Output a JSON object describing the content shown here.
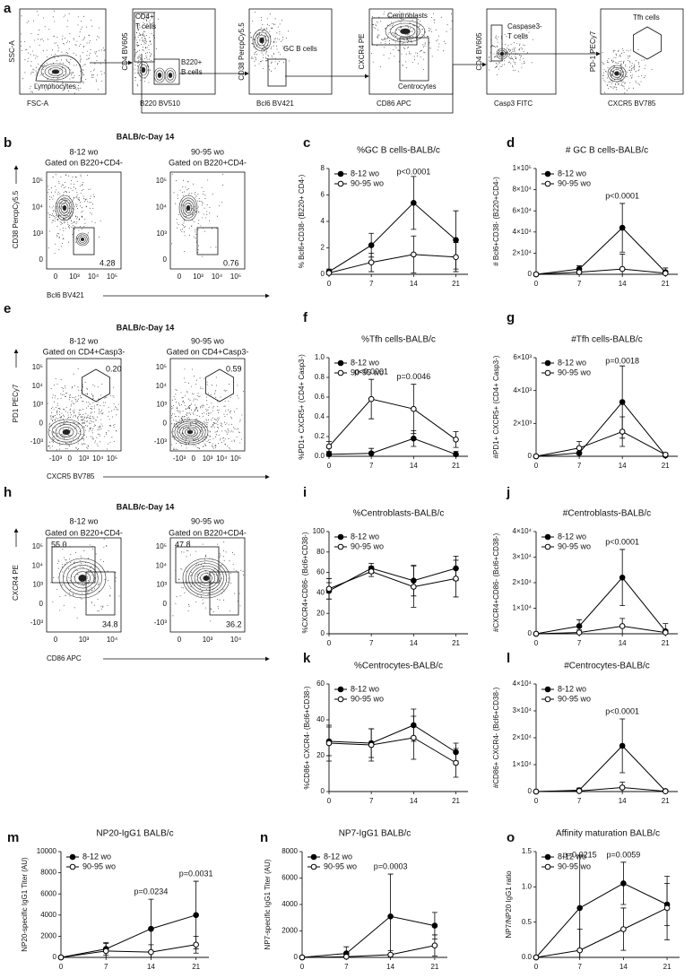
{
  "flow_row": {
    "letter": "a",
    "plots": [
      {
        "y_label": "SSC-A",
        "x_label": "FSC-A",
        "gates": [
          "Lymphocytes"
        ]
      },
      {
        "y_label": "CD4 BV605",
        "x_label": "B220 BV510",
        "gates": [
          "CD4+",
          "T cells",
          "B220+",
          "B cells"
        ]
      },
      {
        "y_label": "CD38 PercpCy5.5",
        "x_label": "Bcl6 BV421",
        "gates": [
          "GC B cells"
        ]
      },
      {
        "y_label": "CXCR4 PE",
        "x_label": "CD86 APC",
        "gates": [
          "Centroblasts",
          "Centrocytes"
        ]
      },
      {
        "y_label": "CD4 BV605",
        "x_label": "Casp3 FITC",
        "gates": [
          "Caspase3-",
          "T cells"
        ]
      },
      {
        "y_label": "PD-1 PECy7",
        "x_label": "CXCR5 BV785",
        "gates": [
          "Tfh cells"
        ]
      }
    ]
  },
  "flow_panels": [
    {
      "letter": "b",
      "title": "BALB/c-Day 14",
      "y_label": "CD38 PercpCy5.5",
      "x_label": "Bcl6 BV421",
      "y_ticks": [
        "10⁵",
        "10⁴",
        "10³",
        "0"
      ],
      "x_ticks": [
        "0",
        "10³",
        "10⁴",
        "10⁵"
      ],
      "plots": [
        {
          "age": "8-12 wo",
          "gating": "Gated on B220+CD4-",
          "gates": [
            "4.28"
          ]
        },
        {
          "age": "90-95 wo",
          "gating": "Gated on B220+CD4-",
          "gates": [
            "0.76"
          ]
        }
      ]
    },
    {
      "letter": "e",
      "title": "BALB/c-Day 14",
      "y_label": "PD1 PECy7",
      "x_label": "CXCR5 BV785",
      "y_ticks": [
        "10⁵",
        "10⁴",
        "10³",
        "0",
        "-10³"
      ],
      "x_ticks": [
        "-10³",
        "0",
        "10³",
        "10⁴",
        "10⁵"
      ],
      "plots": [
        {
          "age": "8-12 wo",
          "gating": "Gated on CD4+Casp3-",
          "gates": [
            "0.20"
          ]
        },
        {
          "age": "90-95 wo",
          "gating": "Gated on CD4+Casp3-",
          "gates": [
            "0.59"
          ]
        }
      ]
    },
    {
      "letter": "h",
      "title": "BALB/c-Day 14",
      "y_label": "CXCR4 PE",
      "x_label": "CD86 APC",
      "y_ticks": [
        "10⁵",
        "10⁴",
        "10³",
        "0",
        "-10³"
      ],
      "x_ticks": [
        "0",
        "10³",
        "10⁴"
      ],
      "plots": [
        {
          "age": "8-12 wo",
          "gating": "Gated on B220+CD4-",
          "gates": [
            "55.0",
            "34.8"
          ]
        },
        {
          "age": "90-95 wo",
          "gating": "Gated on B220+CD4-",
          "gates": [
            "47.8",
            "36.2"
          ]
        }
      ]
    }
  ],
  "chart_data": [
    {
      "letter": "c",
      "type": "line",
      "title": "%GC B cells-BALB/c",
      "y_label": "% Bcl6+CD38- (B220+ CD4-)",
      "x": [
        0,
        7,
        14,
        21
      ],
      "xlim": [
        0,
        23
      ],
      "xticks": [
        0,
        7,
        14,
        21
      ],
      "ylim": [
        0,
        8
      ],
      "yticks": [
        0,
        2,
        4,
        6,
        8
      ],
      "series": [
        {
          "name": "8-12 wo",
          "color": "#000000",
          "filled": true,
          "values": [
            0.2,
            2.2,
            5.4,
            2.6
          ],
          "errors": [
            0.2,
            0.9,
            2.0,
            2.2
          ]
        },
        {
          "name": "90-95 wo",
          "color": "#000000",
          "filled": false,
          "values": [
            0.1,
            0.9,
            1.5,
            1.3
          ],
          "errors": [
            0.1,
            0.7,
            1.4,
            1.1
          ]
        }
      ],
      "annotations": [
        "p<0.0001"
      ]
    },
    {
      "letter": "d",
      "type": "line",
      "title": "# GC B cells-BALB/c",
      "y_label": "# Bcl6+CD38- (B220+CD4-)",
      "x": [
        0,
        7,
        14,
        21
      ],
      "xlim": [
        0,
        23
      ],
      "xticks": [
        0,
        7,
        14,
        21
      ],
      "ylim": [
        0,
        100000
      ],
      "yticks": [
        0,
        {
          "value": 20000,
          "label": "2×10⁴"
        },
        {
          "value": 40000,
          "label": "4×10⁴"
        },
        {
          "value": 60000,
          "label": "6×10⁴"
        },
        {
          "value": 80000,
          "label": "8×10⁴"
        },
        {
          "value": 100000,
          "label": "1×10⁵"
        }
      ],
      "series": [
        {
          "name": "8-12 wo",
          "color": "#000000",
          "filled": true,
          "values": [
            0,
            5000,
            44000,
            2000
          ],
          "errors": [
            0,
            3000,
            23000,
            4000
          ]
        },
        {
          "name": "90-95 wo",
          "color": "#000000",
          "filled": false,
          "values": [
            0,
            2000,
            5000,
            1000
          ],
          "errors": [
            0,
            1000,
            14000,
            2000
          ]
        }
      ],
      "annotations": [
        "p<0.0001"
      ]
    },
    {
      "letter": "f",
      "type": "line",
      "title": "%Tfh cells-BALB/c",
      "y_label": "%PD1+ CXCR5+ (CD4+ Casp3-)",
      "x": [
        0,
        7,
        14,
        21
      ],
      "xlim": [
        0,
        23
      ],
      "xticks": [
        0,
        7,
        14,
        21
      ],
      "ylim": [
        0,
        1
      ],
      "yticks": [
        {
          "value": 0,
          "label": "0.0"
        },
        0.2,
        0.4,
        0.6,
        0.8,
        {
          "value": 1,
          "label": "1.0"
        }
      ],
      "series": [
        {
          "name": "8-12 wo",
          "color": "#000000",
          "filled": true,
          "values": [
            0.02,
            0.03,
            0.18,
            0.02
          ],
          "errors": [
            0.02,
            0.05,
            0.08,
            0.03
          ]
        },
        {
          "name": "90-95 wo",
          "color": "#000000",
          "filled": false,
          "values": [
            0.1,
            0.58,
            0.48,
            0.17
          ],
          "errors": [
            0.05,
            0.2,
            0.25,
            0.08
          ]
        }
      ],
      "annotations": [
        "p<0.0001",
        "p=0.0046"
      ]
    },
    {
      "letter": "g",
      "type": "line",
      "title": "#Tfh cells-BALB/c",
      "y_label": "#PD1+ CXCR5+ (CD4+ Casp3-)",
      "x": [
        0,
        7,
        14,
        21
      ],
      "xlim": [
        0,
        23
      ],
      "xticks": [
        0,
        7,
        14,
        21
      ],
      "ylim": [
        0,
        6000
      ],
      "yticks": [
        0,
        {
          "value": 2000,
          "label": "2×10³"
        },
        {
          "value": 4000,
          "label": "4×10³"
        },
        {
          "value": 6000,
          "label": "6×10³"
        }
      ],
      "series": [
        {
          "name": "8-12 wo",
          "color": "#000000",
          "filled": true,
          "values": [
            0,
            200,
            3300,
            50
          ],
          "errors": [
            0,
            300,
            2200,
            100
          ]
        },
        {
          "name": "90-95 wo",
          "color": "#000000",
          "filled": false,
          "values": [
            0,
            500,
            1500,
            100
          ],
          "errors": [
            0,
            400,
            900,
            100
          ]
        }
      ],
      "annotations": [
        "p=0.0018"
      ]
    },
    {
      "letter": "i",
      "type": "line",
      "title": "%Centroblasts-BALB/c",
      "y_label": "%CXCR4+CD86- (Bcl6+CD38-)",
      "x": [
        0,
        7,
        14,
        21
      ],
      "xlim": [
        0,
        23
      ],
      "xticks": [
        0,
        7,
        14,
        21
      ],
      "ylim": [
        0,
        100
      ],
      "yticks": [
        0,
        20,
        40,
        60,
        80,
        100
      ],
      "series": [
        {
          "name": "8-12 wo",
          "color": "#000000",
          "filled": true,
          "values": [
            42,
            64,
            52,
            64
          ],
          "errors": [
            8,
            5,
            15,
            12
          ]
        },
        {
          "name": "90-95 wo",
          "color": "#000000",
          "filled": false,
          "values": [
            44,
            61,
            46,
            54
          ],
          "errors": [
            10,
            5,
            20,
            18
          ]
        }
      ],
      "annotations": []
    },
    {
      "letter": "j",
      "type": "line",
      "title": "#Centroblasts-BALB/c",
      "y_label": "#CXCR4+CD86- (Bcl6+CD38-)",
      "x": [
        0,
        7,
        14,
        21
      ],
      "xlim": [
        0,
        23
      ],
      "xticks": [
        0,
        7,
        14,
        21
      ],
      "ylim": [
        0,
        40000
      ],
      "yticks": [
        0,
        {
          "value": 10000,
          "label": "1×10⁴"
        },
        {
          "value": 20000,
          "label": "2×10⁴"
        },
        {
          "value": 30000,
          "label": "3×10⁴"
        },
        {
          "value": 40000,
          "label": "4×10⁴"
        }
      ],
      "series": [
        {
          "name": "8-12 wo",
          "color": "#000000",
          "filled": true,
          "values": [
            0,
            3000,
            22000,
            1000
          ],
          "errors": [
            0,
            2500,
            11000,
            3000
          ]
        },
        {
          "name": "90-95 wo",
          "color": "#000000",
          "filled": false,
          "values": [
            0,
            500,
            3000,
            500
          ],
          "errors": [
            0,
            1000,
            3000,
            1000
          ]
        }
      ],
      "annotations": [
        "p<0.0001"
      ]
    },
    {
      "letter": "k",
      "type": "line",
      "title": "%Centrocytes-BALB/c",
      "y_label": "%CD86+ CXCR4- (Bcl6+CD38-)",
      "x": [
        0,
        7,
        14,
        21
      ],
      "xlim": [
        0,
        23
      ],
      "xticks": [
        0,
        7,
        14,
        21
      ],
      "ylim": [
        0,
        60
      ],
      "yticks": [
        0,
        20,
        40,
        60
      ],
      "series": [
        {
          "name": "8-12 wo",
          "color": "#000000",
          "filled": true,
          "values": [
            28,
            27,
            37,
            22
          ],
          "errors": [
            8,
            8,
            9,
            5
          ]
        },
        {
          "name": "90-95 wo",
          "color": "#000000",
          "filled": false,
          "values": [
            27,
            26,
            30,
            16
          ],
          "errors": [
            10,
            9,
            12,
            8
          ]
        }
      ],
      "annotations": []
    },
    {
      "letter": "l",
      "type": "line",
      "title": "#Centrocytes-BALB/c",
      "y_label": "#CD86+ CXCR4- (Bcl6+CD38-)",
      "x": [
        0,
        7,
        14,
        21
      ],
      "xlim": [
        0,
        23
      ],
      "xticks": [
        0,
        7,
        14,
        21
      ],
      "ylim": [
        0,
        40000
      ],
      "yticks": [
        0,
        {
          "value": 10000,
          "label": "1×10⁴"
        },
        {
          "value": 20000,
          "label": "2×10⁴"
        },
        {
          "value": 30000,
          "label": "3×10⁴"
        },
        {
          "value": 40000,
          "label": "4×10⁴"
        }
      ],
      "series": [
        {
          "name": "8-12 wo",
          "color": "#000000",
          "filled": true,
          "values": [
            0,
            500,
            17000,
            200
          ],
          "errors": [
            0,
            800,
            10000,
            500
          ]
        },
        {
          "name": "90-95 wo",
          "color": "#000000",
          "filled": false,
          "values": [
            0,
            200,
            1500,
            100
          ],
          "errors": [
            0,
            300,
            2000,
            200
          ]
        }
      ],
      "annotations": [
        "p<0.0001"
      ]
    },
    {
      "letter": "m",
      "type": "line",
      "title": "NP20-IgG1 BALB/c",
      "y_label": "NP20-specific IgG1 Titer (AU)",
      "x": [
        0,
        7,
        14,
        21
      ],
      "xlim": [
        0,
        23
      ],
      "xticks": [
        0,
        7,
        14,
        21
      ],
      "ylim": [
        0,
        10000
      ],
      "yticks": [
        0,
        2000,
        4000,
        6000,
        8000,
        10000
      ],
      "series": [
        {
          "name": "8-12 wo",
          "color": "#000000",
          "filled": true,
          "values": [
            0,
            800,
            2700,
            4000
          ],
          "errors": [
            0,
            600,
            2800,
            3200
          ]
        },
        {
          "name": "90-95 wo",
          "color": "#000000",
          "filled": false,
          "values": [
            0,
            600,
            500,
            1200
          ],
          "errors": [
            0,
            700,
            700,
            800
          ]
        }
      ],
      "annotations": [
        "p=0.0234",
        "p=0.0031"
      ]
    },
    {
      "letter": "n",
      "type": "line",
      "title": "NP7-IgG1 BALB/c",
      "y_label": "NP7-specific IgG1 Titer (AU)",
      "x": [
        0,
        7,
        14,
        21
      ],
      "xlim": [
        0,
        23
      ],
      "xticks": [
        0,
        7,
        14,
        21
      ],
      "ylim": [
        0,
        8000
      ],
      "yticks": [
        0,
        2000,
        4000,
        6000,
        8000
      ],
      "series": [
        {
          "name": "8-12 wo",
          "color": "#000000",
          "filled": true,
          "values": [
            0,
            300,
            3100,
            2400
          ],
          "errors": [
            0,
            500,
            3200,
            1000
          ]
        },
        {
          "name": "90-95 wo",
          "color": "#000000",
          "filled": false,
          "values": [
            0,
            50,
            200,
            900
          ],
          "errors": [
            0,
            100,
            300,
            800
          ]
        }
      ],
      "annotations": [
        "p=0.0003"
      ]
    },
    {
      "letter": "o",
      "type": "line",
      "title": "Affinity maturation BALB/c",
      "y_label": "NP7/NP20 IgG1 ratio",
      "x": [
        0,
        7,
        14,
        21
      ],
      "xlim": [
        0,
        23
      ],
      "xticks": [
        0,
        7,
        14,
        21
      ],
      "ylim": [
        0,
        1.5
      ],
      "yticks": [
        {
          "value": 0,
          "label": "0.0"
        },
        0.5,
        {
          "value": 1,
          "label": "1.0"
        },
        1.5
      ],
      "series": [
        {
          "name": "8-12 wo",
          "color": "#000000",
          "filled": true,
          "values": [
            0,
            0.7,
            1.05,
            0.75
          ],
          "errors": [
            0,
            0.75,
            0.3,
            0.3
          ]
        },
        {
          "name": "90-95 wo",
          "color": "#000000",
          "filled": false,
          "values": [
            0,
            0.1,
            0.4,
            0.7
          ],
          "errors": [
            0,
            0.3,
            0.3,
            0.45
          ]
        }
      ],
      "annotations": [
        "p=0.0215",
        "p=0.0059"
      ]
    }
  ]
}
